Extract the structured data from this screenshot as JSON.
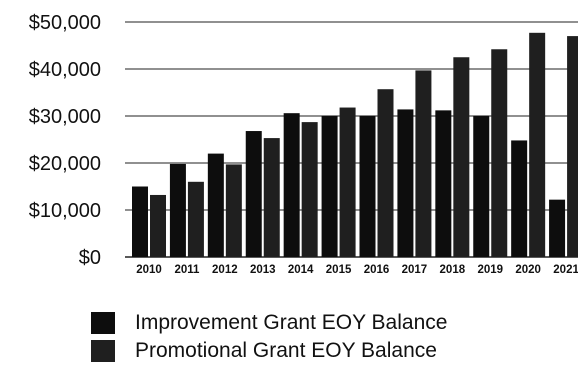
{
  "chart_data": {
    "type": "bar",
    "title": "",
    "xlabel": "",
    "ylabel": "",
    "categories": [
      "2010",
      "2011",
      "2012",
      "2013",
      "2014",
      "2015",
      "2016",
      "2017",
      "2018",
      "2019",
      "2020",
      "2021"
    ],
    "series": [
      {
        "name": "Improvement Grant EOY Balance",
        "color": "#0d0d0d",
        "values": [
          15000,
          19800,
          22000,
          26800,
          30600,
          30100,
          30100,
          31400,
          31200,
          30100,
          24800,
          12200
        ]
      },
      {
        "name": "Promotional Grant EOY Balance",
        "color": "#1f1f1f",
        "values": [
          13200,
          16000,
          19700,
          25300,
          28700,
          31800,
          35700,
          39700,
          42500,
          44200,
          47700,
          47000
        ]
      }
    ],
    "ylim": [
      0,
      50000
    ],
    "yticks": [
      "$0",
      "$10,000",
      "$20,000",
      "$30,000",
      "$40,000",
      "$50,000"
    ],
    "ytick_values": [
      0,
      10000,
      20000,
      30000,
      40000,
      50000
    ],
    "grid": true,
    "legend": "bottom"
  }
}
